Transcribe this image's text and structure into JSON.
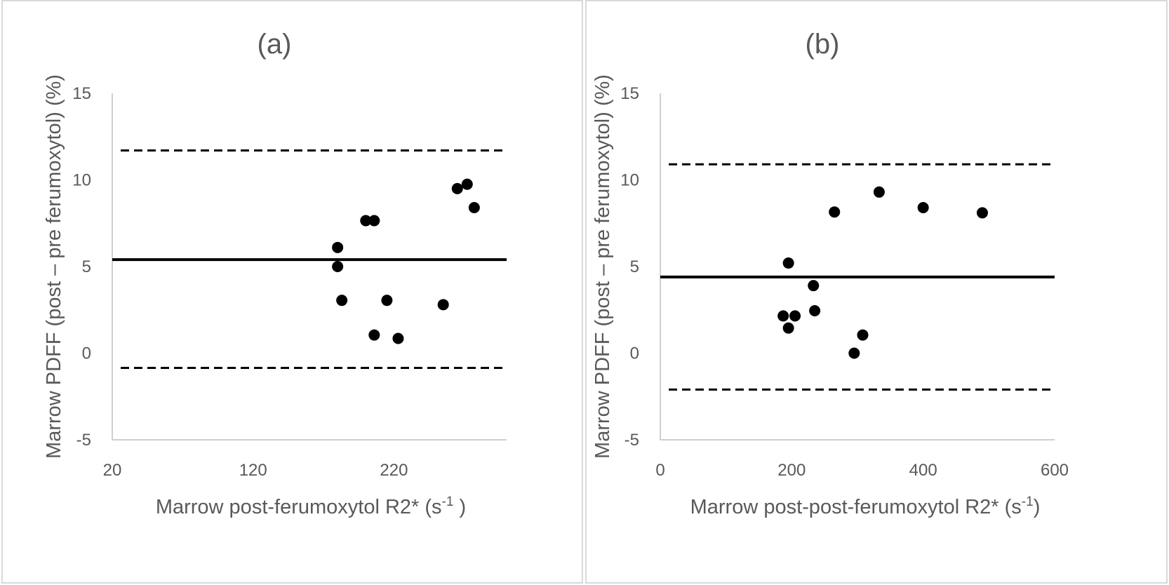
{
  "chart_data": [
    {
      "type": "scatter",
      "panel": "a",
      "title": "(a)",
      "xlabel": "Marrow post-ferumoxytol R2* (s",
      "xlabel_sup": "-1",
      "xlabel_end": " )",
      "ylabel": "Marrow PDFF (post – pre ferumoxytol) (%)",
      "xlim": [
        20,
        300
      ],
      "ylim": [
        -5,
        15
      ],
      "xticks": [
        20,
        120,
        220
      ],
      "yticks": [
        -5,
        0,
        5,
        10,
        15
      ],
      "xtick_labels": [
        "20",
        "120",
        "220"
      ],
      "ytick_labels": [
        "-5",
        "0",
        "5",
        "10",
        "15"
      ],
      "mean_line": 5.4,
      "limits_of_agreement": [
        11.7,
        -0.85
      ],
      "x": [
        180,
        180,
        183,
        200,
        206,
        206,
        215,
        223,
        255,
        265,
        272,
        277
      ],
      "y": [
        6.1,
        5.0,
        3.05,
        7.65,
        7.65,
        1.05,
        3.05,
        0.85,
        2.8,
        9.5,
        9.75,
        8.4
      ]
    },
    {
      "type": "scatter",
      "panel": "b",
      "title": "(b)",
      "xlabel": "Marrow post-post-ferumoxytol R2* (s",
      "xlabel_sup": "-1",
      "xlabel_end": ")",
      "ylabel": "Marrow PDFF (post – pre ferumoxytol) (%)",
      "xlim": [
        0,
        600
      ],
      "ylim": [
        -5,
        15
      ],
      "xticks": [
        0,
        200,
        400,
        600
      ],
      "yticks": [
        -5,
        0,
        5,
        10,
        15
      ],
      "xtick_labels": [
        "0",
        "200",
        "400",
        "600"
      ],
      "ytick_labels": [
        "-5",
        "0",
        "5",
        "10",
        "15"
      ],
      "mean_line": 4.4,
      "limits_of_agreement": [
        10.9,
        -2.1
      ],
      "x": [
        187,
        195,
        195,
        205,
        233,
        235,
        265,
        295,
        308,
        333,
        400,
        490
      ],
      "y": [
        2.15,
        1.45,
        5.2,
        2.15,
        3.9,
        2.45,
        8.15,
        0.0,
        1.05,
        9.3,
        8.4,
        8.1
      ]
    }
  ]
}
